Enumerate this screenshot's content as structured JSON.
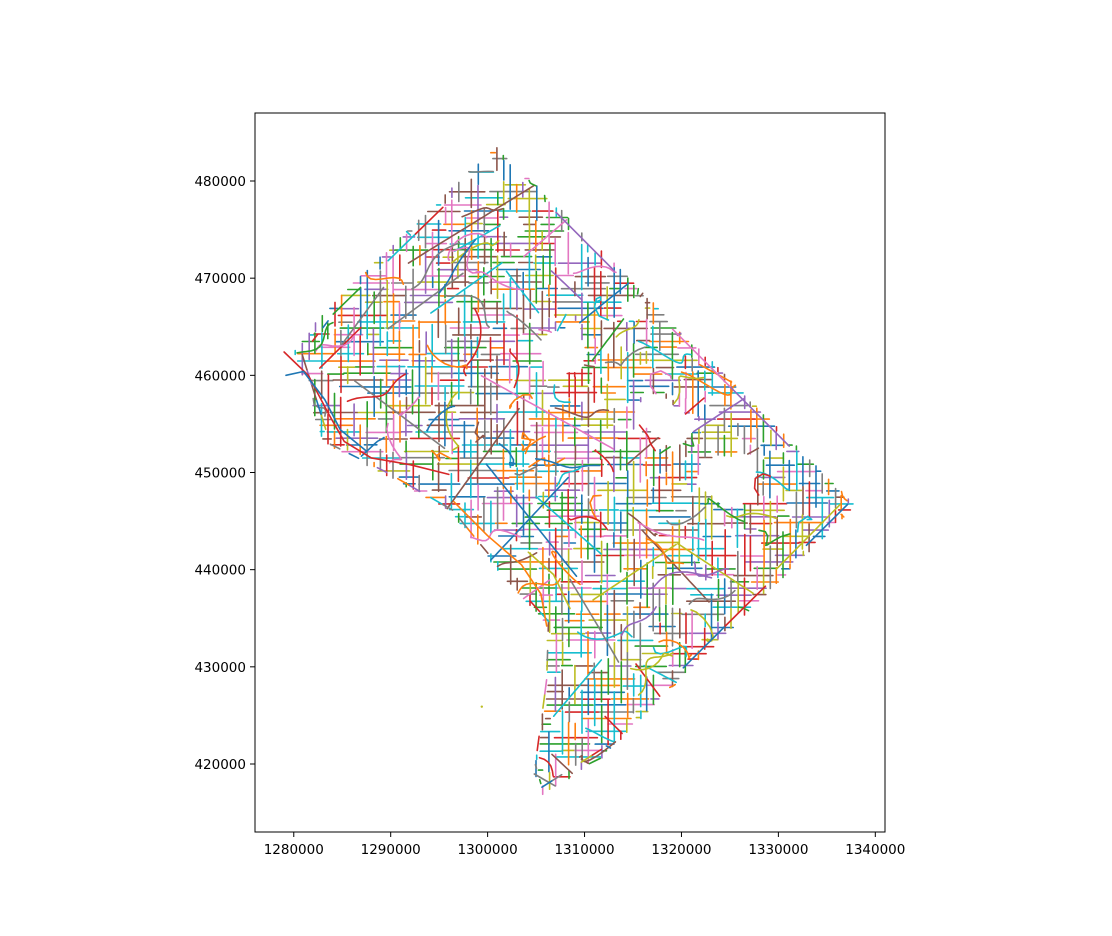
{
  "chart_data": {
    "type": "map",
    "title": "",
    "xlabel": "",
    "ylabel": "",
    "xlim": [
      1276000,
      1341000
    ],
    "ylim": [
      413000,
      487000
    ],
    "grid": false,
    "legend": "none",
    "xticks": [
      {
        "value": 1280000,
        "label": "1280000"
      },
      {
        "value": 1290000,
        "label": "1290000"
      },
      {
        "value": 1300000,
        "label": "1300000"
      },
      {
        "value": 1310000,
        "label": "1310000"
      },
      {
        "value": 1320000,
        "label": "1320000"
      },
      {
        "value": 1330000,
        "label": "1330000"
      },
      {
        "value": 1340000,
        "label": "1340000"
      }
    ],
    "yticks": [
      {
        "value": 420000,
        "label": "420000"
      },
      {
        "value": 430000,
        "label": "430000"
      },
      {
        "value": 440000,
        "label": "440000"
      },
      {
        "value": 450000,
        "label": "450000"
      },
      {
        "value": 460000,
        "label": "460000"
      },
      {
        "value": 470000,
        "label": "470000"
      },
      {
        "value": 480000,
        "label": "480000"
      }
    ],
    "colors": [
      "#1f77b4",
      "#ff7f0e",
      "#2ca02c",
      "#d62728",
      "#9467bd",
      "#8c564b",
      "#e377c2",
      "#7f7f7f",
      "#bcbd22",
      "#17becf"
    ],
    "boundary": [
      [
        1300800,
        483800
      ],
      [
        1338000,
        446600
      ],
      [
        1311800,
        420600
      ],
      [
        1305500,
        416600
      ],
      [
        1304800,
        419000
      ],
      [
        1306000,
        428000
      ],
      [
        1306200,
        434200
      ],
      [
        1300500,
        440500
      ],
      [
        1296000,
        446000
      ],
      [
        1289000,
        450000
      ],
      [
        1283000,
        453000
      ],
      [
        1280000,
        462500
      ],
      [
        1283300,
        466800
      ],
      [
        1300800,
        483800
      ]
    ],
    "river_notch": [
      [
        1306200,
        434200
      ],
      [
        1310500,
        440000
      ],
      [
        1307500,
        436000
      ],
      [
        1306200,
        434200
      ]
    ],
    "holes": [
      {
        "polygon": [
          [
            1305800,
            464000
          ],
          [
            1309500,
            465500
          ],
          [
            1310000,
            461000
          ],
          [
            1306500,
            459500
          ],
          [
            1305500,
            462000
          ]
        ]
      },
      {
        "polygon": [
          [
            1316500,
            458500
          ],
          [
            1322000,
            455000
          ],
          [
            1319500,
            452500
          ],
          [
            1315000,
            455500
          ]
        ]
      },
      {
        "polygon": [
          [
            1322500,
            451500
          ],
          [
            1327500,
            451800
          ],
          [
            1327500,
            447000
          ],
          [
            1324500,
            446500
          ],
          [
            1321500,
            449000
          ]
        ]
      },
      {
        "polygon": [
          [
            1310000,
            474500
          ],
          [
            1311500,
            476000
          ],
          [
            1312500,
            474000
          ],
          [
            1310800,
            472800
          ]
        ]
      },
      {
        "polygon": [
          [
            1314000,
            467500
          ],
          [
            1316000,
            468000
          ],
          [
            1316200,
            466000
          ],
          [
            1314200,
            465500
          ]
        ]
      },
      {
        "polygon": [
          [
            1301500,
            475500
          ],
          [
            1302800,
            476800
          ],
          [
            1303800,
            475000
          ],
          [
            1302300,
            473800
          ]
        ]
      },
      {
        "polygon": [
          [
            1328500,
            434000
          ],
          [
            1331500,
            436000
          ],
          [
            1333000,
            433000
          ],
          [
            1330000,
            431000
          ]
        ]
      }
    ],
    "seed": 17,
    "isolated_point": [
      1299400,
      425900
    ]
  }
}
